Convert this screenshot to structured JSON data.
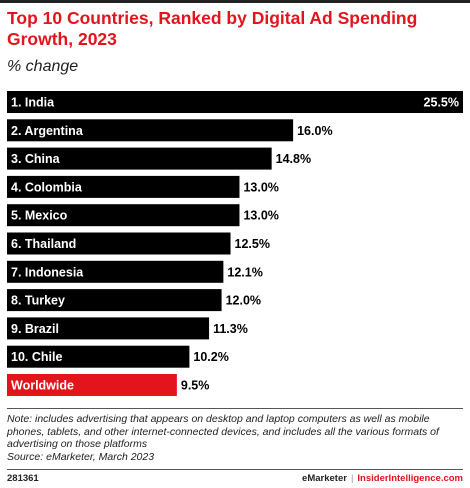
{
  "header": {
    "title": "Top 10 Countries, Ranked by Digital Ad Spending Growth, 2023",
    "subtitle": "% change"
  },
  "chart_data": {
    "type": "bar",
    "orientation": "horizontal",
    "categories": [
      "1. India",
      "2. Argentina",
      "3. China",
      "4. Colombia",
      "5. Mexico",
      "6. Thailand",
      "7. Indonesia",
      "8. Turkey",
      "9. Brazil",
      "10. Chile",
      "Worldwide"
    ],
    "values": [
      25.5,
      16.0,
      14.8,
      13.0,
      13.0,
      12.5,
      12.1,
      12.0,
      11.3,
      10.2,
      9.5
    ],
    "value_labels": [
      "25.5%",
      "16.0%",
      "14.8%",
      "13.0%",
      "13.0%",
      "12.5%",
      "12.1%",
      "12.0%",
      "11.3%",
      "10.2%",
      "9.5%"
    ],
    "highlight_category": "Worldwide",
    "colors": {
      "bar": "#000000",
      "highlight": "#e3141c"
    },
    "xlim": [
      0,
      25.5
    ],
    "grid": false,
    "legend": "none"
  },
  "footer": {
    "note": "Note: includes advertising that appears on desktop and laptop computers as well as mobile phones, tablets, and other internet-connected devices, and includes all the various formats of advertising on those platforms",
    "source": "Source: eMarketer, March 2023",
    "chart_id": "281361",
    "brand_left": "eMarketer",
    "brand_sep": "|",
    "brand_right": "InsiderIntelligence.com"
  }
}
